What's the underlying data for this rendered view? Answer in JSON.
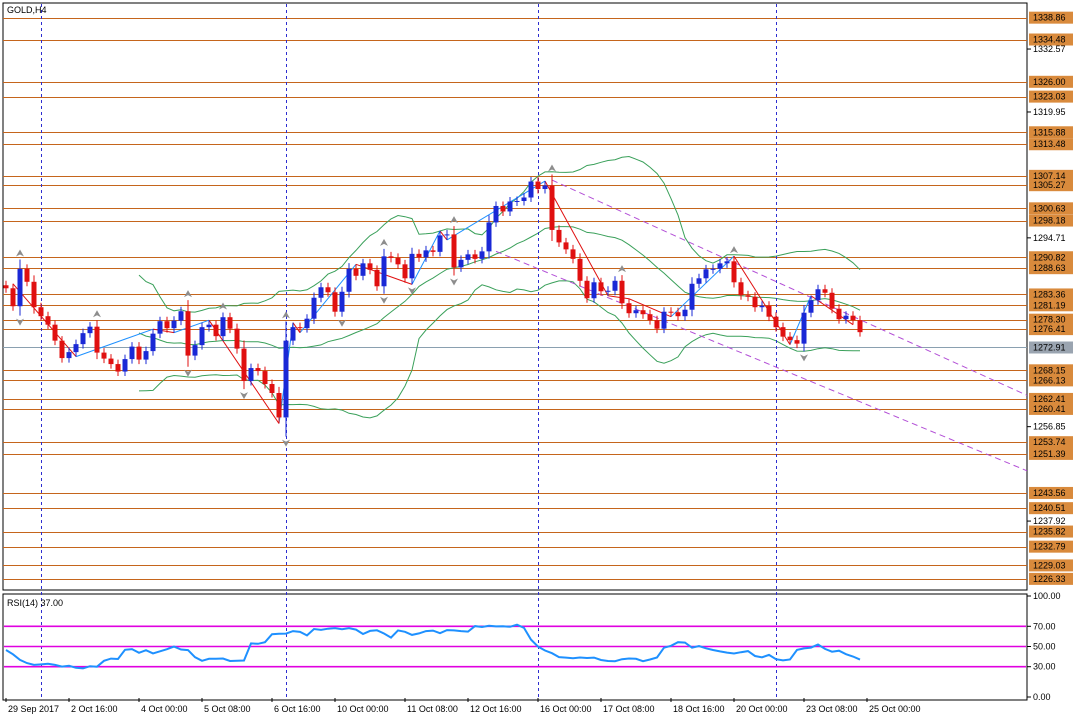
{
  "title": "GOLD,H4",
  "colors": {
    "bull": "#1a28d6",
    "bear": "#e01010",
    "hline": "#c5651c",
    "tag_bg": "#d98a3c",
    "current_bg": "#9aa4b0",
    "bands": "#3aa05a",
    "channel": "#b24ed6",
    "vsep": "#2d2dd0",
    "rsi_line": "#1e90ff",
    "rsi_level": "#e000e0",
    "zigzag": "#e01010",
    "zigzag_up": "#1e90ff",
    "fractal": "#8d8d8d"
  },
  "chart_data": [
    {
      "type": "candlestick",
      "title": "GOLD,H4",
      "ylim": [
        1224.3,
        1341.6
      ],
      "x_labels": [
        "29 Sep 2017",
        "2 Oct 16:00",
        "4 Oct 00:00",
        "5 Oct 08:00",
        "6 Oct 16:00",
        "10 Oct 00:00",
        "11 Oct 08:00",
        "12 Oct 16:00",
        "16 Oct 00:00",
        "17 Oct 08:00",
        "18 Oct 16:00",
        "20 Oct 00:00",
        "23 Oct 08:00",
        "25 Oct 00:00"
      ],
      "y_ticks": [
        1332.57,
        1319.95,
        1294.71,
        1256.85,
        1237.92
      ],
      "price_levels": [
        1338.86,
        1334.48,
        1326.0,
        1323.03,
        1315.88,
        1313.48,
        1307.14,
        1305.27,
        1300.63,
        1298.18,
        1290.82,
        1288.63,
        1283.36,
        1281.19,
        1278.3,
        1276.41,
        1268.15,
        1266.13,
        1262.41,
        1260.41,
        1253.74,
        1251.39,
        1243.56,
        1240.51,
        1235.82,
        1232.79,
        1229.03,
        1226.33
      ],
      "current_price": 1272.91,
      "period_separators": [
        "2 Oct 2017",
        "6 Oct 2017",
        "16 Oct 2017",
        "23 Oct 2017"
      ],
      "close": [
        1284.6,
        1281.0,
        1288.5,
        1285.9,
        1280.8,
        1279.0,
        1277.3,
        1274.1,
        1270.6,
        1271.8,
        1273.4,
        1275.6,
        1276.9,
        1271.7,
        1270.5,
        1269.4,
        1267.9,
        1270.4,
        1272.9,
        1270.3,
        1272.0,
        1275.5,
        1278.0,
        1276.6,
        1278.1,
        1280.0,
        1271.1,
        1273.2,
        1276.8,
        1277.3,
        1275.0,
        1278.8,
        1276.5,
        1272.5,
        1266.0,
        1268.6,
        1268.0,
        1265.4,
        1263.6,
        1258.7,
        1274.1,
        1276.8,
        1276.6,
        1278.5,
        1282.7,
        1284.8,
        1283.8,
        1279.9,
        1283.9,
        1288.5,
        1287.1,
        1289.6,
        1288.3,
        1285.0,
        1291.0,
        1290.7,
        1289.4,
        1286.6,
        1291.5,
        1290.8,
        1292.2,
        1291.9,
        1295.2,
        1295.4,
        1288.8,
        1290.3,
        1291.4,
        1290.5,
        1292.0,
        1297.8,
        1301.1,
        1300.0,
        1302.0,
        1302.1,
        1302.8,
        1306.0,
        1304.5,
        1305.2,
        1296.3,
        1293.8,
        1292.4,
        1290.5,
        1286.1,
        1282.6,
        1285.8,
        1284.0,
        1284.1,
        1286.1,
        1281.6,
        1279.6,
        1280.2,
        1279.4,
        1278.2,
        1276.5,
        1279.9,
        1279.8,
        1279.0,
        1280.3,
        1285.5,
        1286.6,
        1288.4,
        1288.5,
        1289.6,
        1290.0,
        1285.8,
        1283.2,
        1282.9,
        1280.8,
        1281.1,
        1278.9,
        1276.8,
        1274.9,
        1274.2,
        1273.5,
        1279.7,
        1282.2,
        1284.4,
        1283.7,
        1280.5,
        1278.4,
        1279.1,
        1278.2,
        1275.8
      ],
      "rsi": {
        "label": "RSI(14) 37.00",
        "period": 14,
        "last": 37.0,
        "ylim": [
          0,
          100
        ],
        "ticks": [
          100.0,
          70.0,
          50.0,
          30.0,
          0.0
        ],
        "levels": [
          70,
          50,
          30
        ],
        "values": [
          46.5,
          42.3,
          36.7,
          33.6,
          31.8,
          32.3,
          32.9,
          31.8,
          30.1,
          30.9,
          28.9,
          28.3,
          30.5,
          30.0,
          35.8,
          38.0,
          37.6,
          46.7,
          47.4,
          43.8,
          46.3,
          43.2,
          45.2,
          47.3,
          49.9,
          47.0,
          46.4,
          39.4,
          35.8,
          37.8,
          37.8,
          38.1,
          35.6,
          35.9,
          36.1,
          53.1,
          52.7,
          54.3,
          62.2,
          62.6,
          62.8,
          65.2,
          64.5,
          61.0,
          67.3,
          66.4,
          67.6,
          68.2,
          67.1,
          68.2,
          66.7,
          62.4,
          65.4,
          66.0,
          62.9,
          58.8,
          65.9,
          64.6,
          61.5,
          63.0,
          65.2,
          65.7,
          63.2,
          66.2,
          65.9,
          65.2,
          64.8,
          70.2,
          69.3,
          70.5,
          69.9,
          70.0,
          69.5,
          71.6,
          68.4,
          56.8,
          49.9,
          46.0,
          43.4,
          39.5,
          39.0,
          38.4,
          39.1,
          38.6,
          39.0,
          36.6,
          35.6,
          35.4,
          37.4,
          38.1,
          37.8,
          35.4,
          37.1,
          39.1,
          48.8,
          50.7,
          54.3,
          53.9,
          48.8,
          50.5,
          48.2,
          46.5,
          45.1,
          44.0,
          43.1,
          44.4,
          45.4,
          40.6,
          39.3,
          41.7,
          37.4,
          36.2,
          37.1,
          46.6,
          48.1,
          48.9,
          52.0,
          47.6,
          44.9,
          45.8,
          42.4,
          40.1,
          37.0
        ]
      }
    }
  ]
}
